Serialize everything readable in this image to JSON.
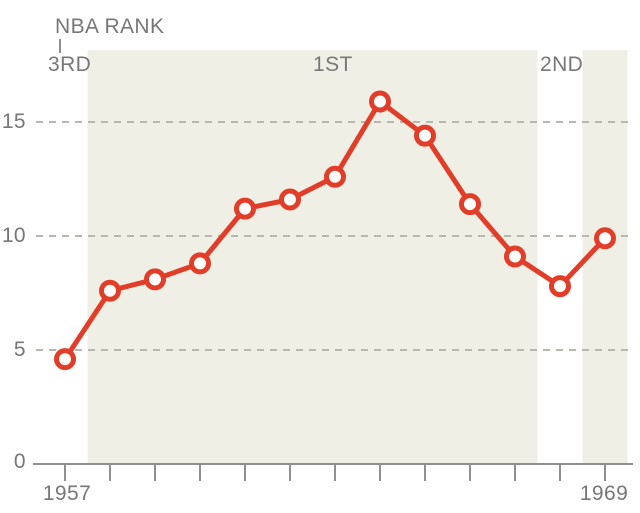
{
  "annotation": {
    "label": "NBA RANK",
    "points_to": "3RD"
  },
  "chart_data": {
    "type": "line",
    "title": "NBA RANK",
    "x": [
      1957,
      1958,
      1959,
      1960,
      1961,
      1962,
      1963,
      1964,
      1965,
      1966,
      1967,
      1968,
      1969
    ],
    "values": [
      4.6,
      7.6,
      8.1,
      8.8,
      11.2,
      11.6,
      12.6,
      15.9,
      14.4,
      11.4,
      9.1,
      7.8,
      9.9
    ],
    "y_ticks": [
      0,
      5,
      10,
      15
    ],
    "ylim": [
      0,
      17
    ],
    "xlim": [
      1957,
      1969
    ],
    "x_axis_labels": [
      "1957",
      "1969"
    ],
    "grid": "horizontal-dashed",
    "legend": "none",
    "rank_regions": [
      {
        "label": "3RD",
        "years": [
          1957,
          1957
        ],
        "shaded": false
      },
      {
        "label": "1ST",
        "years": [
          1958,
          1967
        ],
        "shaded": true
      },
      {
        "label": "2ND",
        "years": [
          1968,
          1968
        ],
        "shaded": false
      },
      {
        "label": "",
        "years": [
          1969,
          1969
        ],
        "shaded": true
      }
    ],
    "colors": {
      "line": "#e23d28",
      "marker_fill": "#ffffff",
      "band": "#f0efe6",
      "grid": "#b7b7b2",
      "axis": "#8f8f8f",
      "text": "#777777"
    }
  }
}
